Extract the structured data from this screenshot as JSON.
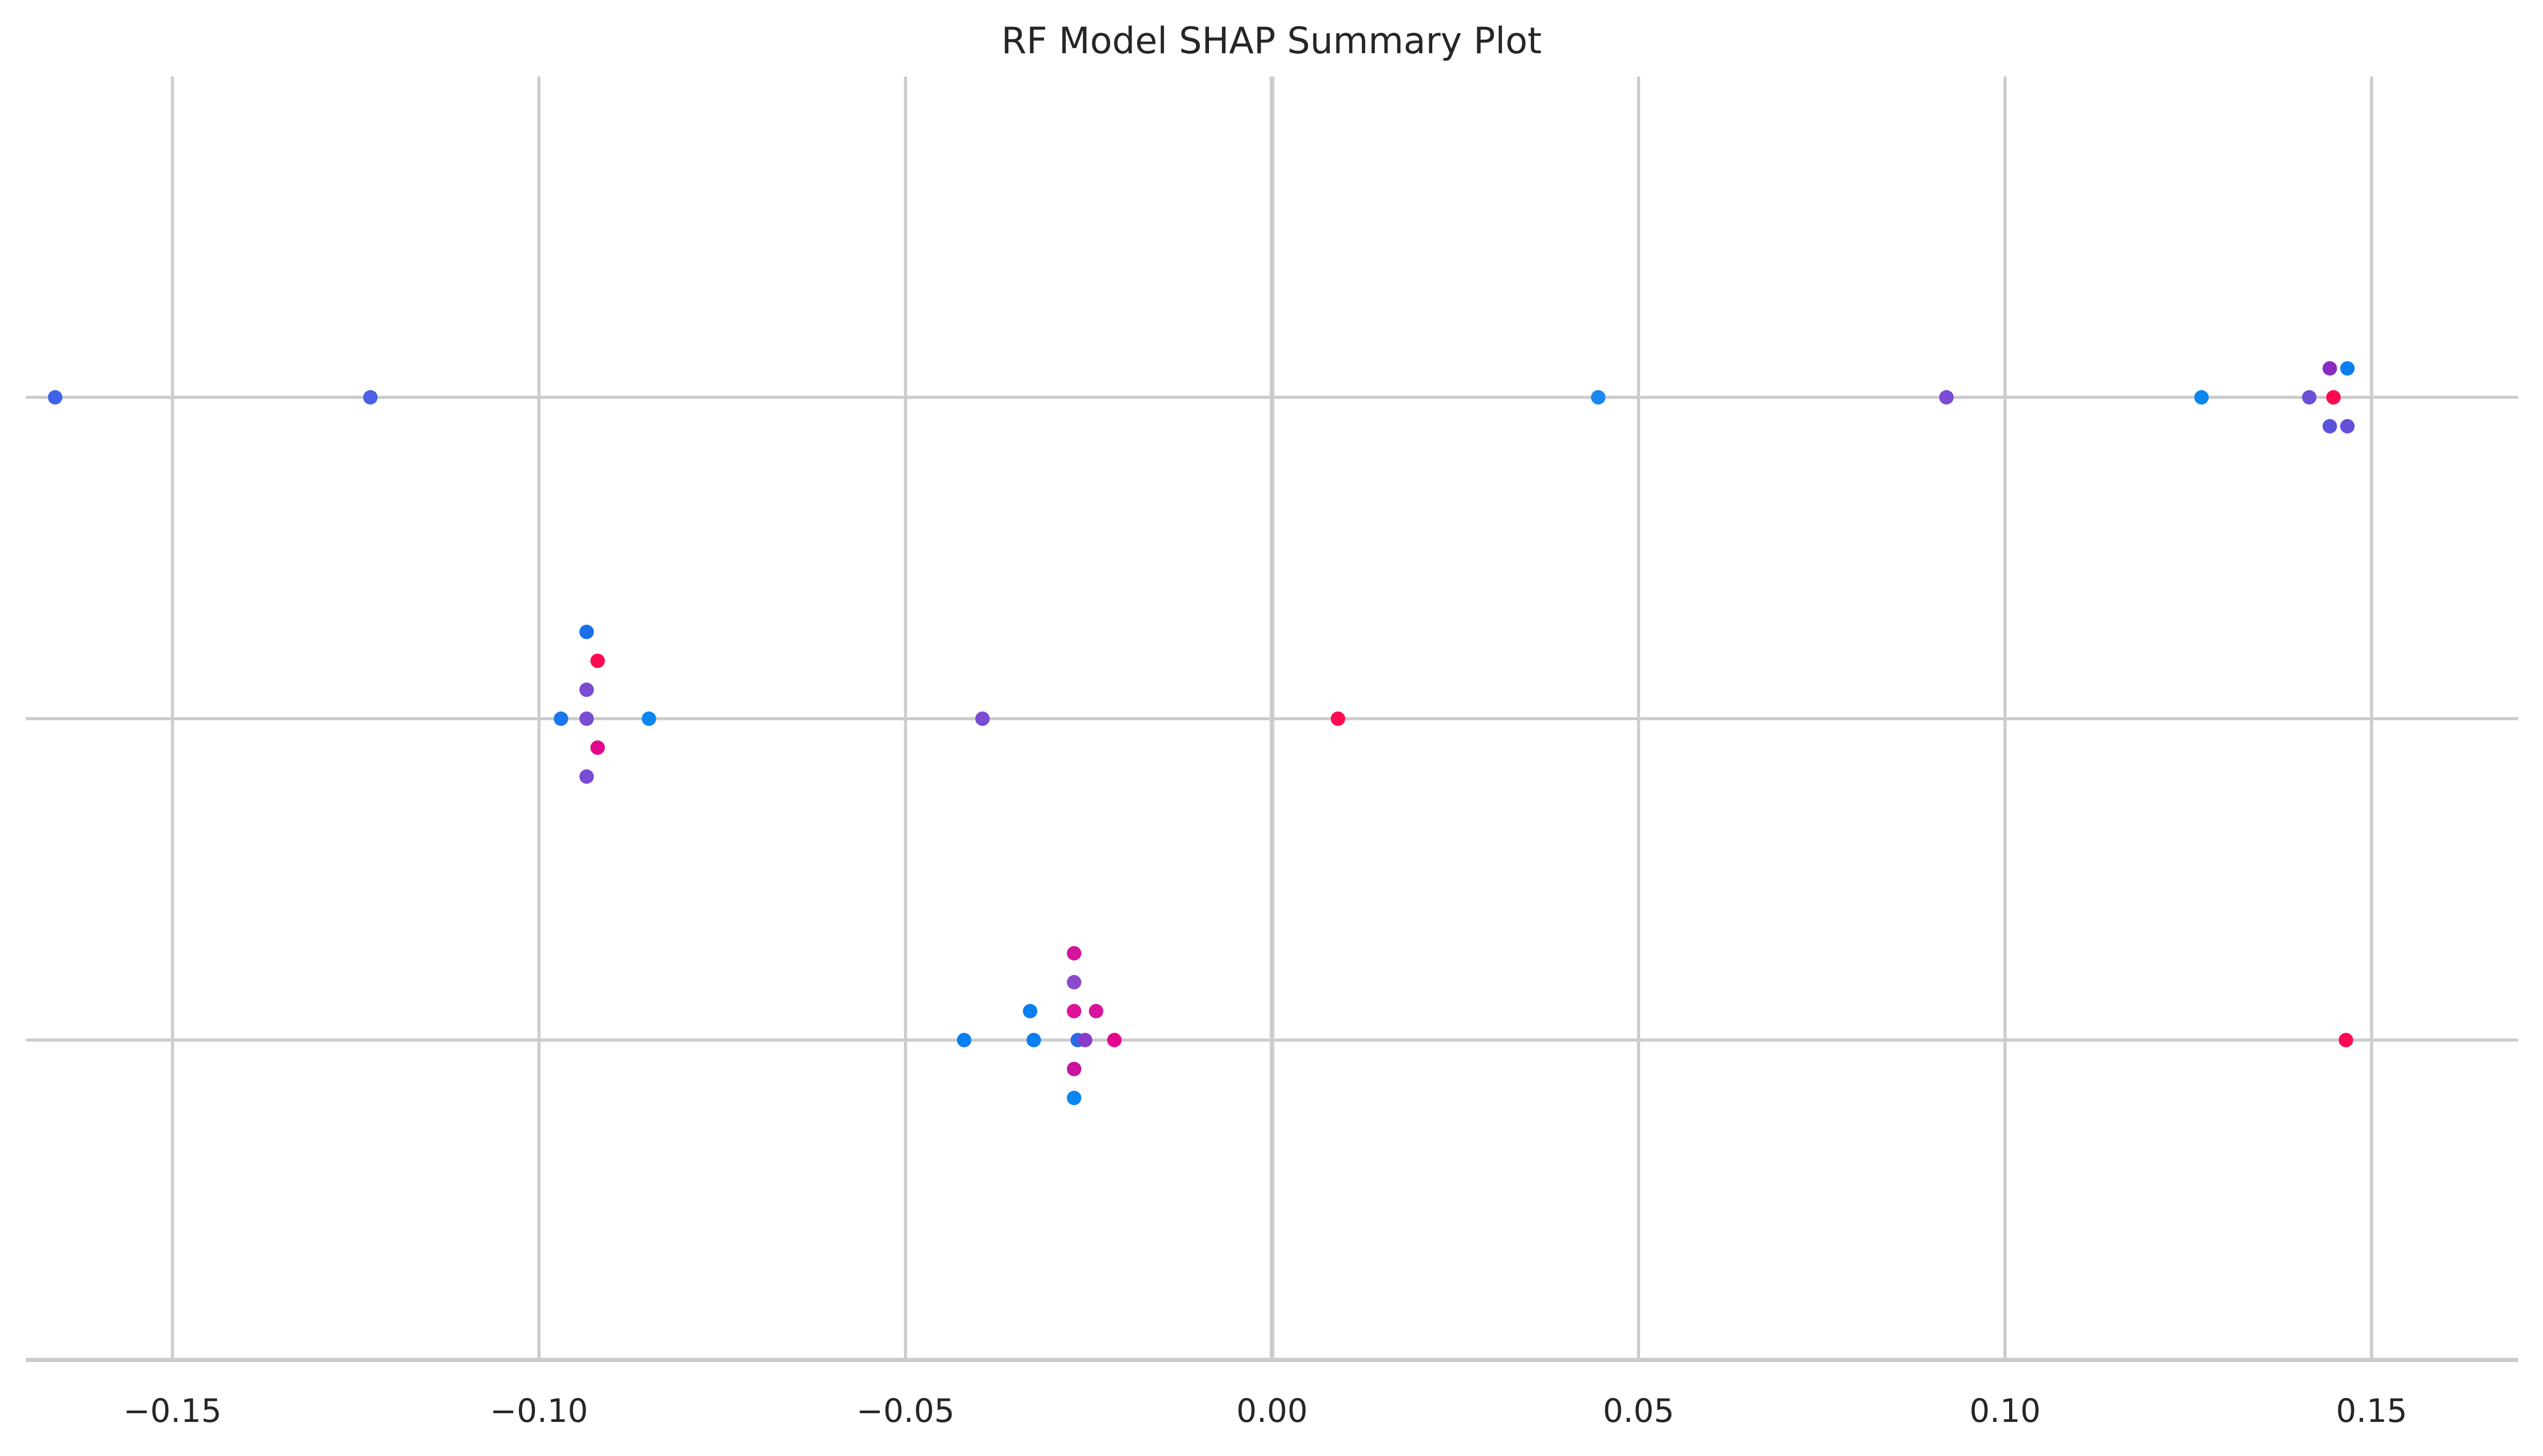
{
  "chart_data": {
    "type": "scatter",
    "title": "RF Model SHAP Summary Plot",
    "xlabel": "",
    "ylabel": "",
    "xlim": [
      -0.17,
      0.17
    ],
    "x_ticks": [
      -0.15,
      -0.1,
      -0.05,
      0.0,
      0.05,
      0.1,
      0.15
    ],
    "x_tick_labels": [
      "−0.15",
      "−0.10",
      "−0.05",
      "0.00",
      "0.05",
      "0.10",
      "0.15"
    ],
    "grid": true,
    "legend": "none",
    "features": [
      {
        "row": 1,
        "points": [
          {
            "x": -0.166,
            "offset": 0,
            "color": "#3f63e8"
          },
          {
            "x": -0.123,
            "offset": 0,
            "color": "#4b60e4"
          },
          {
            "x": 0.0445,
            "offset": 0,
            "color": "#1b87f2"
          },
          {
            "x": 0.092,
            "offset": 0,
            "color": "#7a4bd3"
          },
          {
            "x": 0.1268,
            "offset": 0,
            "color": "#0a86f0"
          },
          {
            "x": 0.1415,
            "offset": 0,
            "color": "#6b4fd6"
          },
          {
            "x": 0.1448,
            "offset": 0,
            "color": "#ff0a52"
          },
          {
            "x": 0.1443,
            "offset": 1,
            "color": "#8a2bc0"
          },
          {
            "x": 0.1467,
            "offset": 1,
            "color": "#0a80f0"
          },
          {
            "x": 0.1443,
            "offset": -1,
            "color": "#5a52da"
          },
          {
            "x": 0.1467,
            "offset": -1,
            "color": "#6550d8"
          }
        ]
      },
      {
        "row": 2,
        "points": [
          {
            "x": -0.0935,
            "offset": 3,
            "color": "#1a6fe8"
          },
          {
            "x": -0.092,
            "offset": 2,
            "color": "#ff0a52"
          },
          {
            "x": -0.0935,
            "offset": 1,
            "color": "#7a4bd3"
          },
          {
            "x": -0.097,
            "offset": 0,
            "color": "#1a78ee"
          },
          {
            "x": -0.0935,
            "offset": 0,
            "color": "#7a4bd3"
          },
          {
            "x": -0.085,
            "offset": 0,
            "color": "#0a86f0"
          },
          {
            "x": -0.0395,
            "offset": 0,
            "color": "#7a4bd3"
          },
          {
            "x": 0.009,
            "offset": 0,
            "color": "#ff0a52"
          },
          {
            "x": -0.092,
            "offset": -1,
            "color": "#e3068c"
          },
          {
            "x": -0.0935,
            "offset": -2,
            "color": "#7a4bd3"
          }
        ]
      },
      {
        "row": 3,
        "points": [
          {
            "x": -0.027,
            "offset": 3,
            "color": "#d4149a"
          },
          {
            "x": -0.027,
            "offset": 2,
            "color": "#8a4ccc"
          },
          {
            "x": -0.033,
            "offset": 1,
            "color": "#0a80f0"
          },
          {
            "x": -0.027,
            "offset": 1,
            "color": "#e0129a"
          },
          {
            "x": -0.024,
            "offset": 1,
            "color": "#d4149a"
          },
          {
            "x": -0.042,
            "offset": 0,
            "color": "#0a80f0"
          },
          {
            "x": -0.0325,
            "offset": 0,
            "color": "#0a80f0"
          },
          {
            "x": -0.0265,
            "offset": 0,
            "color": "#2a6ae8"
          },
          {
            "x": -0.0255,
            "offset": 0,
            "color": "#8a3cc8"
          },
          {
            "x": -0.0215,
            "offset": 0,
            "color": "#e3068c"
          },
          {
            "x": 0.1465,
            "offset": 0,
            "color": "#ff0a52"
          },
          {
            "x": -0.027,
            "offset": -1,
            "color": "#c8129e"
          },
          {
            "x": -0.027,
            "offset": -2,
            "color": "#0a86f0"
          }
        ]
      }
    ]
  }
}
